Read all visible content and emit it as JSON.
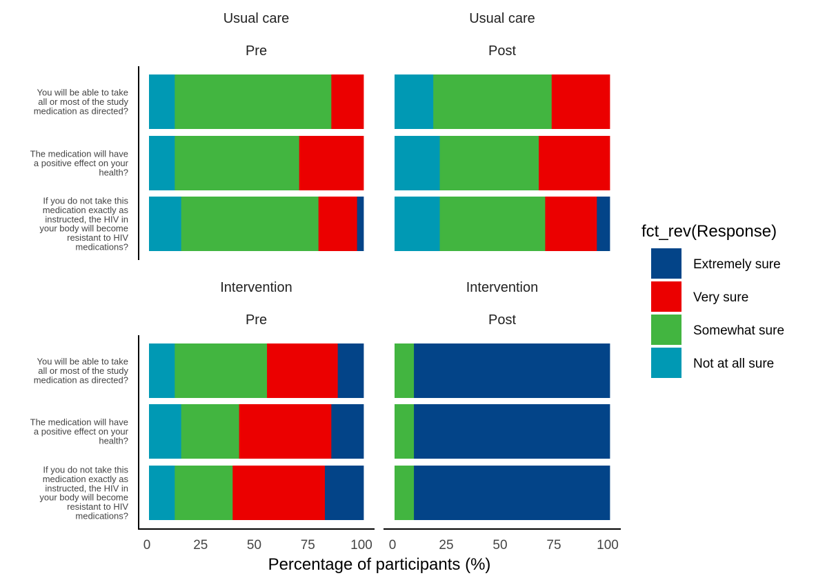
{
  "chart_data": {
    "type": "bar",
    "orientation": "horizontal",
    "stacked": true,
    "xlabel": "Percentage of participants (%)",
    "xlim": [
      0,
      100
    ],
    "x_ticks": [
      "0",
      "25",
      "50",
      "75",
      "100"
    ],
    "categories": [
      "You will be able to take all or most of the study medication as directed?",
      "The medication will have a positive effect on your health?",
      "If you do not take this medication exactly as instructed, the HIV in your body will become resistant to HIV medications?"
    ],
    "category_lines": [
      [
        "You will be able to take",
        "all or most of the study",
        "medication as directed?"
      ],
      [
        "The medication will have",
        "a positive effect on your",
        "health?"
      ],
      [
        "If you do not take this",
        "medication exactly as",
        "instructed, the HIV in",
        "your body will become",
        "resistant to HIV",
        "medications?"
      ]
    ],
    "legend": {
      "title": "fct_rev(Response)",
      "position": "right",
      "entries": [
        {
          "name": "Extremely sure",
          "color": "#034488"
        },
        {
          "name": "Very sure",
          "color": "#EB0000"
        },
        {
          "name": "Somewhat sure",
          "color": "#42B540"
        },
        {
          "name": "Not at all sure",
          "color": "#0099B4"
        }
      ]
    },
    "stack_order": [
      "Not at all sure",
      "Somewhat sure",
      "Very sure",
      "Extremely sure"
    ],
    "panels": [
      {
        "group": "Usual care",
        "time": "Pre",
        "bars": [
          {
            "Not at all sure": 12,
            "Somewhat sure": 73,
            "Very sure": 15,
            "Extremely sure": 0
          },
          {
            "Not at all sure": 12,
            "Somewhat sure": 58,
            "Very sure": 30,
            "Extremely sure": 0
          },
          {
            "Not at all sure": 15,
            "Somewhat sure": 64,
            "Very sure": 18,
            "Extremely sure": 3
          }
        ]
      },
      {
        "group": "Usual care",
        "time": "Post",
        "bars": [
          {
            "Not at all sure": 18,
            "Somewhat sure": 55,
            "Very sure": 27,
            "Extremely sure": 0
          },
          {
            "Not at all sure": 21,
            "Somewhat sure": 46,
            "Very sure": 33,
            "Extremely sure": 0
          },
          {
            "Not at all sure": 21,
            "Somewhat sure": 49,
            "Very sure": 24,
            "Extremely sure": 6
          }
        ]
      },
      {
        "group": "Intervention",
        "time": "Pre",
        "bars": [
          {
            "Not at all sure": 12,
            "Somewhat sure": 43,
            "Very sure": 33,
            "Extremely sure": 12
          },
          {
            "Not at all sure": 15,
            "Somewhat sure": 27,
            "Very sure": 43,
            "Extremely sure": 15
          },
          {
            "Not at all sure": 12,
            "Somewhat sure": 27,
            "Very sure": 43,
            "Extremely sure": 18
          }
        ]
      },
      {
        "group": "Intervention",
        "time": "Post",
        "bars": [
          {
            "Not at all sure": 0,
            "Somewhat sure": 9,
            "Very sure": 0,
            "Extremely sure": 91
          },
          {
            "Not at all sure": 0,
            "Somewhat sure": 9,
            "Very sure": 0,
            "Extremely sure": 91
          },
          {
            "Not at all sure": 0,
            "Somewhat sure": 9,
            "Very sure": 0,
            "Extremely sure": 91
          }
        ]
      }
    ]
  }
}
